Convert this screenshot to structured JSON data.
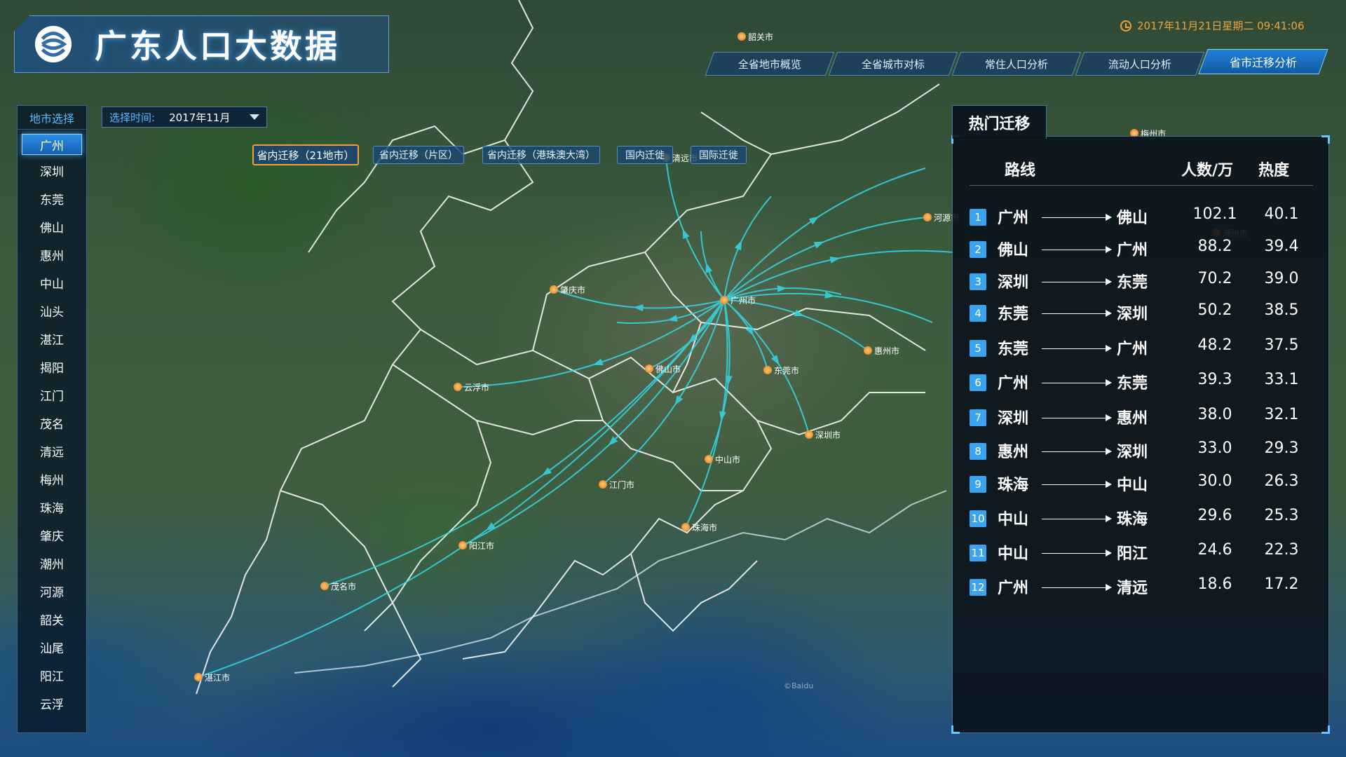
{
  "header": {
    "title": "广东人口大数据",
    "datetime": "2017年11月21日星期二  09:41:06"
  },
  "top_tabs": [
    {
      "label": "全省地市概览",
      "active": false
    },
    {
      "label": "全省城市对标",
      "active": false
    },
    {
      "label": "常住人口分析",
      "active": false
    },
    {
      "label": "流动人口分析",
      "active": false
    },
    {
      "label": "省市迁移分析",
      "active": true
    }
  ],
  "city_panel": {
    "title": "地市选择",
    "selected": "广州",
    "cities": [
      "广州",
      "深圳",
      "东莞",
      "佛山",
      "惠州",
      "中山",
      "汕头",
      "湛江",
      "揭阳",
      "江门",
      "茂名",
      "清远",
      "梅州",
      "珠海",
      "肇庆",
      "潮州",
      "河源",
      "韶关",
      "汕尾",
      "阳江",
      "云浮"
    ]
  },
  "time_select": {
    "label": "选择时间:",
    "value": "2017年11月"
  },
  "sub_tabs": [
    {
      "label": "省内迁移（21地市）",
      "active": true
    },
    {
      "label": "省内迁移（片区）",
      "active": false
    },
    {
      "label": "省内迁移（港珠澳大湾）",
      "active": false
    },
    {
      "label": "国内迁徙",
      "active": false
    },
    {
      "label": "国际迁徙",
      "active": false
    }
  ],
  "map": {
    "center_city": "广州市",
    "city_labels": [
      "韶关市",
      "梅州市",
      "河源市",
      "潮州市",
      "肇庆市",
      "广州市",
      "惠州市",
      "佛山市",
      "东莞市",
      "云浮市",
      "深圳市",
      "中山市",
      "江门市",
      "珠海市",
      "阳江市",
      "茂名市",
      "湛江市",
      "清远市"
    ],
    "watermark": "©Baidu"
  },
  "hot_panel": {
    "title": "热门迁移",
    "columns": {
      "route": "路线",
      "count": "人数/万",
      "heat": "热度"
    },
    "rows": [
      {
        "rank": "1",
        "from": "广州",
        "to": "佛山",
        "count": "102.1",
        "heat": "40.1"
      },
      {
        "rank": "2",
        "from": "佛山",
        "to": "广州",
        "count": "88.2",
        "heat": "39.4"
      },
      {
        "rank": "3",
        "from": "深圳",
        "to": "东莞",
        "count": "70.2",
        "heat": "39.0"
      },
      {
        "rank": "4",
        "from": "东莞",
        "to": "深圳",
        "count": "50.2",
        "heat": "38.5"
      },
      {
        "rank": "5",
        "from": "东莞",
        "to": "广州",
        "count": "48.2",
        "heat": "37.5"
      },
      {
        "rank": "6",
        "from": "广州",
        "to": "东莞",
        "count": "39.3",
        "heat": "33.1"
      },
      {
        "rank": "7",
        "from": "深圳",
        "to": "惠州",
        "count": "38.0",
        "heat": "32.1"
      },
      {
        "rank": "8",
        "from": "惠州",
        "to": "深圳",
        "count": "33.0",
        "heat": "29.3"
      },
      {
        "rank": "9",
        "from": "珠海",
        "to": "中山",
        "count": "30.0",
        "heat": "26.3"
      },
      {
        "rank": "10",
        "from": "中山",
        "to": "珠海",
        "count": "29.6",
        "heat": "25.3"
      },
      {
        "rank": "11",
        "from": "中山",
        "to": "阳江",
        "count": "24.6",
        "heat": "22.3"
      },
      {
        "rank": "12",
        "from": "广州",
        "to": "清远",
        "count": "18.6",
        "heat": "17.2"
      }
    ]
  },
  "colors": {
    "accent": "#2b8fe8",
    "highlight": "#f0a23a",
    "flow_line": "#36d8e8",
    "city_dot": "#f08a2a"
  }
}
